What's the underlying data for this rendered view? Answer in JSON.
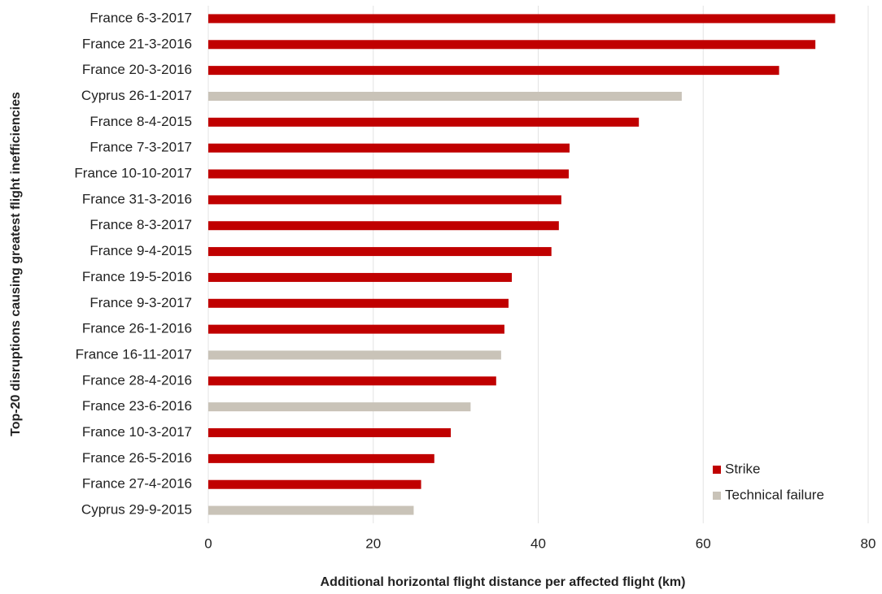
{
  "chart_data": {
    "type": "hbar",
    "xlabel": "Additional horizontal flight distance per affected flight (km)",
    "ylabel": "Top-20 disruptions causing greatest flight inefficiencies",
    "categories": [
      "France 6-3-2017",
      "France 21-3-2016",
      "France 20-3-2016",
      "Cyprus 26-1-2017",
      "France 8-4-2015",
      "France 7-3-2017",
      "France 10-10-2017",
      "France 31-3-2016",
      "France 8-3-2017",
      "France 9-4-2015",
      "France 19-5-2016",
      "France 9-3-2017",
      "France 26-1-2016",
      "France 16-11-2017",
      "France 28-4-2016",
      "France 23-6-2016",
      "France 10-3-2017",
      "France 26-5-2016",
      "France 27-4-2016",
      "Cyprus 29-9-2015"
    ],
    "series": [
      {
        "name": "Strike",
        "color": "#c00000",
        "values": [
          76.0,
          73.6,
          69.2,
          null,
          52.2,
          43.8,
          43.7,
          42.8,
          42.5,
          41.6,
          36.8,
          36.4,
          35.9,
          null,
          34.9,
          null,
          29.4,
          27.4,
          25.8,
          null
        ]
      },
      {
        "name": "Technical failure",
        "color": "#c9c3b8",
        "values": [
          null,
          null,
          null,
          57.4,
          null,
          null,
          null,
          null,
          null,
          null,
          null,
          null,
          null,
          35.5,
          null,
          31.8,
          null,
          null,
          null,
          24.9
        ]
      }
    ],
    "xlim": [
      0,
      80
    ],
    "xticks": [
      0,
      20,
      40,
      60,
      80
    ],
    "grid": true,
    "legend": "lower right"
  }
}
